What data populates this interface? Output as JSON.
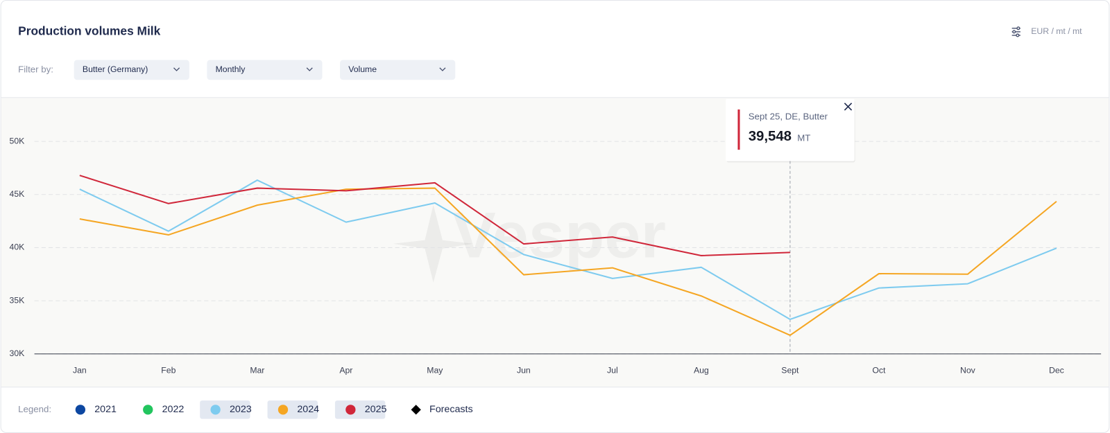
{
  "header": {
    "title": "Production volumes Milk",
    "units": "EUR / mt / mt"
  },
  "filters": {
    "label": "Filter by:",
    "options": [
      "Butter (Germany)",
      "Monthly",
      "Volume"
    ]
  },
  "legend": {
    "label": "Legend:",
    "forecast_label": "Forecasts"
  },
  "watermark": "Vesper",
  "chart_data": {
    "type": "line",
    "categories": [
      "Jan",
      "Feb",
      "Mar",
      "Apr",
      "May",
      "Jun",
      "Jul",
      "Aug",
      "Sept",
      "Oct",
      "Nov",
      "Dec"
    ],
    "series": [
      {
        "name": "2021",
        "color": "#0d47a1",
        "active": false,
        "values": [
          null,
          null,
          null,
          null,
          null,
          null,
          null,
          null,
          null,
          null,
          null,
          null
        ]
      },
      {
        "name": "2022",
        "color": "#22c55e",
        "active": false,
        "values": [
          null,
          null,
          null,
          null,
          null,
          null,
          null,
          null,
          null,
          null,
          null,
          null
        ]
      },
      {
        "name": "2023",
        "color": "#7ecbef",
        "active": true,
        "values": [
          45500,
          41550,
          46350,
          42400,
          44200,
          39350,
          37100,
          38150,
          33250,
          36200,
          36600,
          39950
        ]
      },
      {
        "name": "2024",
        "color": "#f5a623",
        "active": true,
        "values": [
          42700,
          41200,
          44000,
          45500,
          45600,
          37450,
          38100,
          35450,
          31750,
          37550,
          37500,
          44350
        ]
      },
      {
        "name": "2025",
        "color": "#d0273a",
        "active": true,
        "values": [
          46800,
          44150,
          45600,
          45350,
          46100,
          40350,
          41000,
          39250,
          39548,
          null,
          null,
          null
        ]
      }
    ],
    "ylim": [
      30000,
      54000
    ],
    "yticks": [
      {
        "value": 30000,
        "label": "30K"
      },
      {
        "value": 35000,
        "label": "35K"
      },
      {
        "value": 40000,
        "label": "40K"
      },
      {
        "value": 45000,
        "label": "45K"
      },
      {
        "value": 50000,
        "label": "50K"
      }
    ],
    "grid": true,
    "tooltip": {
      "title": "Sept 25, DE, Butter",
      "label": "39,548",
      "unit": "MT"
    }
  }
}
